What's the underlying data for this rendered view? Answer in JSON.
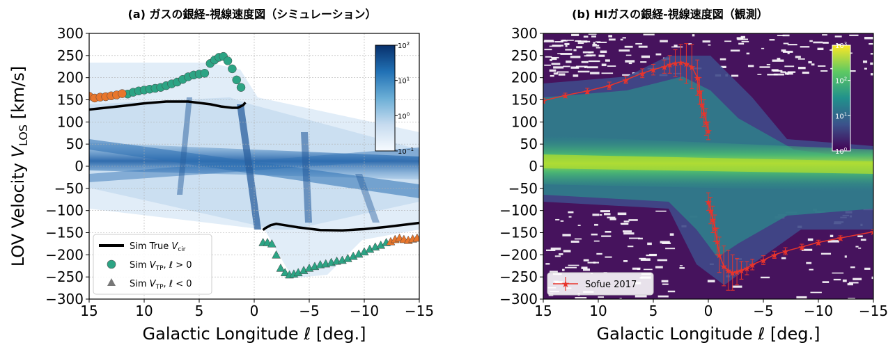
{
  "chart_data": [
    {
      "panel": "a",
      "type": "heatmap",
      "title": "(a) ガスの銀経-視線速度図（シミュレーション）",
      "xlabel": "Galactic Longitude ℓ [deg.]",
      "ylabel": "LOV Velocity V_LOS [km/s]",
      "ylabel_parts": {
        "main": "LOV Velocity ",
        "var": "V",
        "sub": "LOS",
        "unit": " [km/s]"
      },
      "xlim": [
        15,
        -15
      ],
      "ylim": [
        -300,
        300
      ],
      "x_ticks": [
        15,
        10,
        5,
        0,
        -5,
        -10,
        -15
      ],
      "x_tick_labels": [
        "15",
        "10",
        "5",
        "0",
        "−5",
        "−10",
        "−15"
      ],
      "y_ticks": [
        300,
        250,
        200,
        150,
        100,
        50,
        0,
        -50,
        -100,
        -150,
        -200,
        -250,
        -300
      ],
      "y_tick_labels": [
        "300",
        "250",
        "200",
        "150",
        "100",
        "50",
        "0",
        "−50",
        "−100",
        "−150",
        "−200",
        "−250",
        "−300"
      ],
      "grid": true,
      "colorbar": {
        "scale": "log",
        "ticks": [
          {
            "base": "10",
            "exp": "2",
            "v": 2
          },
          {
            "base": "10",
            "exp": "1",
            "v": 1
          },
          {
            "base": "10",
            "exp": "0",
            "v": 0
          },
          {
            "base": "10",
            "exp": "−1",
            "v": -1
          }
        ],
        "colormap": "Blues",
        "placement": "top-right"
      },
      "legend": {
        "placement": "lower-left",
        "entries": [
          {
            "label_main": "Sim True ",
            "label_var": "V",
            "label_sub": "cir",
            "label_rest": "",
            "marker": "line",
            "color": "#000000"
          },
          {
            "label_main": "Sim ",
            "label_var": "V",
            "label_sub": "TP",
            "label_rest": ", ℓ > 0",
            "marker": "circle",
            "color": "#2ca484"
          },
          {
            "label_main": "Sim ",
            "label_var": "V",
            "label_sub": "TP",
            "label_rest": ", ℓ < 0",
            "marker": "triangle",
            "color": "#777777"
          }
        ]
      },
      "series": [
        {
          "name": "Sim True V_cir",
          "kind": "line",
          "color": "#000000",
          "x": [
            15,
            12,
            10,
            8,
            6,
            4,
            3,
            2,
            1.5,
            1.0,
            0.8
          ],
          "y": [
            128,
            136,
            142,
            146,
            146,
            140,
            135,
            132,
            132,
            138,
            144
          ]
        },
        {
          "name": "Sim True V_cir",
          "kind": "line",
          "color": "#000000",
          "x": [
            -0.8,
            -1.0,
            -1.5,
            -2,
            -3,
            -4,
            -6,
            -8,
            -10,
            -12,
            -15
          ],
          "y": [
            -144,
            -140,
            -133,
            -130,
            -134,
            -138,
            -144,
            -145,
            -142,
            -137,
            -128
          ]
        },
        {
          "name": "Sim V_TP, ℓ > 0",
          "kind": "circle",
          "color": "#2ca484",
          "x": [
            11.5,
            11.0,
            10.5,
            10.0,
            9.5,
            9.0,
            8.5,
            8.0,
            7.5,
            7.0,
            6.5,
            6.0,
            5.5,
            5.0,
            4.5,
            4.0,
            3.6,
            3.2,
            2.8,
            2.4,
            2.0,
            1.6,
            1.2
          ],
          "y": [
            163,
            167,
            170,
            172,
            174,
            176,
            178,
            182,
            186,
            190,
            196,
            202,
            206,
            208,
            210,
            232,
            240,
            246,
            248,
            238,
            220,
            195,
            178
          ]
        },
        {
          "name": "Sim V_TP, ℓ > 0 (outer)",
          "kind": "circle",
          "color": "#e8762c",
          "x": [
            15.0,
            14.5,
            14.0,
            13.5,
            13.0,
            12.5,
            12.0
          ],
          "y": [
            158,
            154,
            156,
            157,
            159,
            161,
            164
          ]
        },
        {
          "name": "Sim V_TP, ℓ < 0",
          "kind": "triangle",
          "color": "#2ca484",
          "x": [
            -0.8,
            -1.2,
            -1.6,
            -2.0,
            -2.4,
            -2.8,
            -3.2,
            -3.6,
            -4.0,
            -4.5,
            -5.0,
            -5.5,
            -6.0,
            -6.5,
            -7.0,
            -7.5,
            -8.0,
            -8.5,
            -9.0,
            -9.5,
            -10.0,
            -10.5,
            -11.0,
            -11.5,
            -12.0
          ],
          "y": [
            -172,
            -172,
            -175,
            -200,
            -230,
            -240,
            -245,
            -243,
            -240,
            -235,
            -230,
            -226,
            -222,
            -220,
            -217,
            -214,
            -212,
            -208,
            -203,
            -198,
            -193,
            -187,
            -182,
            -178,
            -172
          ]
        },
        {
          "name": "Sim V_TP, ℓ < 0 (outer)",
          "kind": "triangle",
          "color": "#e8762c",
          "x": [
            -12.4,
            -12.8,
            -13.2,
            -13.6,
            -14.0,
            -14.4,
            -14.8
          ],
          "y": [
            -170,
            -165,
            -162,
            -165,
            -167,
            -164,
            -162
          ]
        }
      ]
    },
    {
      "panel": "b",
      "type": "heatmap",
      "title": "(b) HIガスの銀経-視線速度図（観測）",
      "xlabel": "Galactic Longitude ℓ [deg.]",
      "xlim": [
        15,
        -15
      ],
      "ylim": [
        -300,
        300
      ],
      "x_ticks": [
        15,
        10,
        5,
        0,
        -5,
        -10,
        -15
      ],
      "x_tick_labels": [
        "15",
        "10",
        "5",
        "0",
        "−5",
        "−10",
        "−15"
      ],
      "y_ticks": [
        300,
        250,
        200,
        150,
        100,
        50,
        0,
        -50,
        -100,
        -150,
        -200,
        -250,
        -300
      ],
      "y_tick_labels": [
        "300",
        "250",
        "200",
        "150",
        "100",
        "50",
        "0",
        "−50",
        "−100",
        "−150",
        "−200",
        "−250",
        "−300"
      ],
      "grid": false,
      "colorbar": {
        "scale": "log",
        "ticks": [
          {
            "base": "10",
            "exp": "3",
            "v": 3
          },
          {
            "base": "10",
            "exp": "2",
            "v": 2
          },
          {
            "base": "10",
            "exp": "1",
            "v": 1
          },
          {
            "base": "10",
            "exp": "0",
            "v": 0
          }
        ],
        "colormap": "viridis",
        "placement": "top-right"
      },
      "legend": {
        "placement": "lower-left",
        "entries": [
          {
            "label": "Sofue 2017",
            "marker": "star",
            "color": "#e8342c"
          }
        ]
      },
      "series": [
        {
          "name": "Sofue 2017",
          "kind": "star-line",
          "color": "#e8342c",
          "x": [
            15.0,
            13.0,
            11.0,
            9.0,
            7.5,
            6.0,
            5.0,
            4.0,
            3.5,
            3.0,
            2.5,
            2.0,
            1.5,
            1.0,
            0.8,
            0.6,
            0.4,
            0.2,
            0.0
          ],
          "y": [
            148,
            160,
            170,
            182,
            195,
            210,
            218,
            225,
            230,
            233,
            235,
            232,
            225,
            200,
            170,
            140,
            120,
            100,
            80
          ],
          "err": [
            5,
            5,
            6,
            8,
            8,
            10,
            12,
            15,
            20,
            30,
            40,
            45,
            50,
            40,
            30,
            30,
            30,
            30,
            20
          ]
        },
        {
          "name": "Sofue 2017",
          "kind": "star-line",
          "color": "#e8342c",
          "x": [
            0.0,
            -0.2,
            -0.4,
            -0.6,
            -0.8,
            -1.0,
            -1.4,
            -1.8,
            -2.2,
            -2.6,
            -3.0,
            -3.5,
            -4.0,
            -5.0,
            -6.0,
            -7.0,
            -8.5,
            -10.0,
            -12.0,
            -15.0
          ],
          "y": [
            -80,
            -100,
            -120,
            -140,
            -170,
            -200,
            -225,
            -235,
            -240,
            -238,
            -235,
            -230,
            -222,
            -212,
            -200,
            -192,
            -182,
            -172,
            -162,
            -148
          ],
          "err": [
            20,
            30,
            30,
            30,
            30,
            40,
            45,
            45,
            40,
            30,
            20,
            15,
            12,
            10,
            8,
            8,
            6,
            5,
            5,
            5
          ]
        }
      ]
    }
  ]
}
